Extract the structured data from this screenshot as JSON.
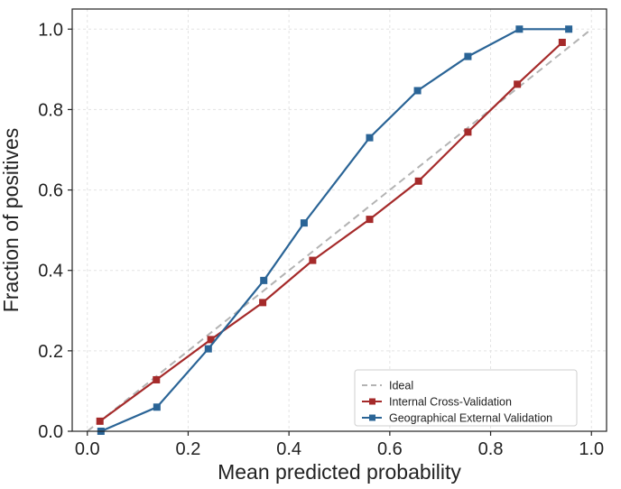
{
  "chart_data": {
    "type": "line",
    "title": "",
    "xlabel": "Mean predicted probability",
    "ylabel": "Fraction of positives",
    "xlim": [
      -0.03,
      1.03
    ],
    "ylim": [
      0.0,
      1.05
    ],
    "xticks": [
      0.0,
      0.2,
      0.4,
      0.6,
      0.8,
      1.0
    ],
    "yticks": [
      0.0,
      0.2,
      0.4,
      0.6,
      0.8,
      1.0
    ],
    "xtick_labels": [
      "0.0",
      "0.2",
      "0.4",
      "0.6",
      "0.8",
      "1.0"
    ],
    "ytick_labels": [
      "0.0",
      "0.2",
      "0.4",
      "0.6",
      "0.8",
      "1.0"
    ],
    "grid": true,
    "legend_position": "bottom-right",
    "series": [
      {
        "name": "Ideal",
        "style": "dashed",
        "color": "#b3b3b3",
        "markers": false,
        "x": [
          0.0,
          1.0
        ],
        "y": [
          0.0,
          1.0
        ]
      },
      {
        "name": "Internal Cross-Validation",
        "style": "solid",
        "color": "#a52a2a",
        "markers": true,
        "x": [
          0.025,
          0.137,
          0.245,
          0.348,
          0.447,
          0.56,
          0.657,
          0.755,
          0.853,
          0.942
        ],
        "y": [
          0.025,
          0.128,
          0.228,
          0.32,
          0.425,
          0.527,
          0.622,
          0.744,
          0.863,
          0.967
        ]
      },
      {
        "name": "Geographical External Validation",
        "style": "solid",
        "color": "#2a6496",
        "markers": true,
        "x": [
          0.027,
          0.138,
          0.24,
          0.35,
          0.43,
          0.56,
          0.655,
          0.755,
          0.857,
          0.955
        ],
        "y": [
          0.0,
          0.06,
          0.205,
          0.375,
          0.518,
          0.73,
          0.847,
          0.932,
          1.0,
          1.0
        ]
      }
    ]
  }
}
